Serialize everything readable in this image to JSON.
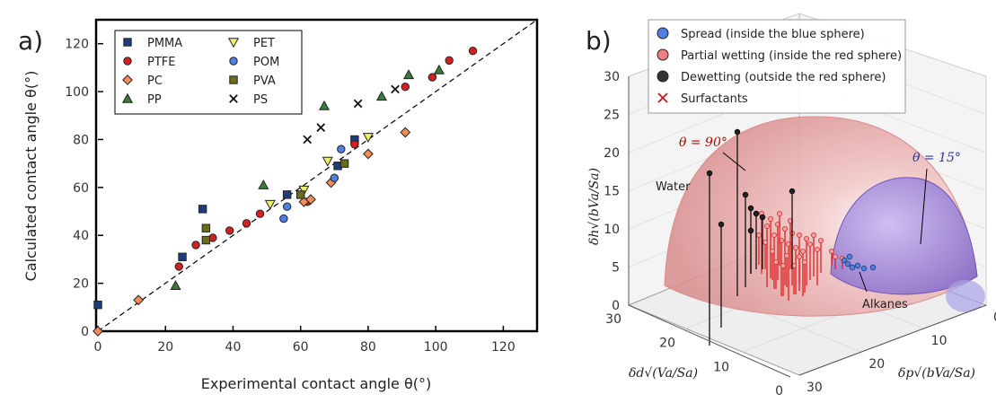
{
  "panel_a": {
    "letter": "a)",
    "chart_data": {
      "type": "scatter",
      "xlabel": "Experimental contact angle θ(°)",
      "ylabel": "Calculated contact angle θ(°)",
      "xlim": [
        0,
        130
      ],
      "ylim": [
        0,
        130
      ],
      "xticks": [
        "0",
        "20",
        "40",
        "60",
        "80",
        "100",
        "120"
      ],
      "yticks": [
        "0",
        "20",
        "40",
        "60",
        "80",
        "100",
        "120"
      ],
      "diagonal": "dashed y = x",
      "legend_position": "top-left",
      "series": [
        {
          "name": "PMMA",
          "marker": "square",
          "color": "#1f3d7a",
          "points": [
            [
              0,
              11
            ],
            [
              25,
              31
            ],
            [
              31,
              51
            ],
            [
              56,
              57
            ],
            [
              71,
              69
            ],
            [
              76,
              80
            ]
          ]
        },
        {
          "name": "PTFE",
          "marker": "circle",
          "color": "#d42020",
          "points": [
            [
              24,
              27
            ],
            [
              29,
              36
            ],
            [
              34,
              39
            ],
            [
              39,
              42
            ],
            [
              44,
              45
            ],
            [
              48,
              49
            ],
            [
              62,
              54
            ],
            [
              76,
              78
            ],
            [
              91,
              102
            ],
            [
              99,
              106
            ],
            [
              104,
              113
            ],
            [
              111,
              117
            ]
          ]
        },
        {
          "name": "PC",
          "marker": "diamond",
          "color": "#f28c5a",
          "points": [
            [
              0,
              0
            ],
            [
              12,
              13
            ],
            [
              61,
              54
            ],
            [
              63,
              55
            ],
            [
              69,
              62
            ],
            [
              80,
              74
            ],
            [
              91,
              83
            ]
          ]
        },
        {
          "name": "PP",
          "marker": "triangle",
          "color": "#3a7a3a",
          "points": [
            [
              23,
              19
            ],
            [
              49,
              61
            ],
            [
              67,
              94
            ],
            [
              84,
              98
            ],
            [
              92,
              107
            ],
            [
              101,
              109
            ]
          ]
        },
        {
          "name": "PET",
          "marker": "triangle-down",
          "color": "#eef069",
          "points": [
            [
              51,
              53
            ],
            [
              61,
              59
            ],
            [
              68,
              71
            ],
            [
              80,
              81
            ]
          ]
        },
        {
          "name": "POM",
          "marker": "circle",
          "color": "#4f7fe0",
          "points": [
            [
              55,
              47
            ],
            [
              56,
              52
            ],
            [
              70,
              64
            ],
            [
              72,
              76
            ]
          ]
        },
        {
          "name": "PVA",
          "marker": "square",
          "color": "#6b6b1e",
          "points": [
            [
              32,
              38
            ],
            [
              32,
              43
            ],
            [
              60,
              57
            ],
            [
              73,
              70
            ]
          ]
        },
        {
          "name": "PS",
          "marker": "x",
          "color": "#111111",
          "points": [
            [
              62,
              80
            ],
            [
              66,
              85
            ],
            [
              77,
              95
            ],
            [
              88,
              101
            ]
          ]
        }
      ]
    }
  },
  "panel_b": {
    "letter": "b)",
    "legend": [
      {
        "label": "Spread (inside the blue sphere)",
        "color": "#4f7fe0",
        "marker": "circle"
      },
      {
        "label": "Partial wetting (inside the red sphere)",
        "color": "#f08080",
        "marker": "circle"
      },
      {
        "label": "Dewetting (outside the red sphere)",
        "color": "#333333",
        "marker": "circle"
      },
      {
        "label": "Surfactants",
        "color": "#d42020",
        "marker": "x"
      }
    ],
    "annotations": {
      "water": "Water",
      "alkanes": "Alkanes",
      "theta90": "θ = 90°",
      "theta15": "θ = 15°"
    },
    "z_ticks": [
      "0",
      "5",
      "10",
      "15",
      "20",
      "25",
      "30"
    ],
    "left_ticks": [
      "30",
      "20",
      "10",
      "0"
    ],
    "right_ticks": [
      "0",
      "10",
      "20",
      "30"
    ],
    "z_label": "δh√(bVa/Sa)",
    "left_label": "δd√(Va/Sa)",
    "right_label": "δp√(bVa/Sa)",
    "colors": {
      "red_sphere": "#e89a9a",
      "blue_sphere": "#8f7ad1"
    }
  }
}
